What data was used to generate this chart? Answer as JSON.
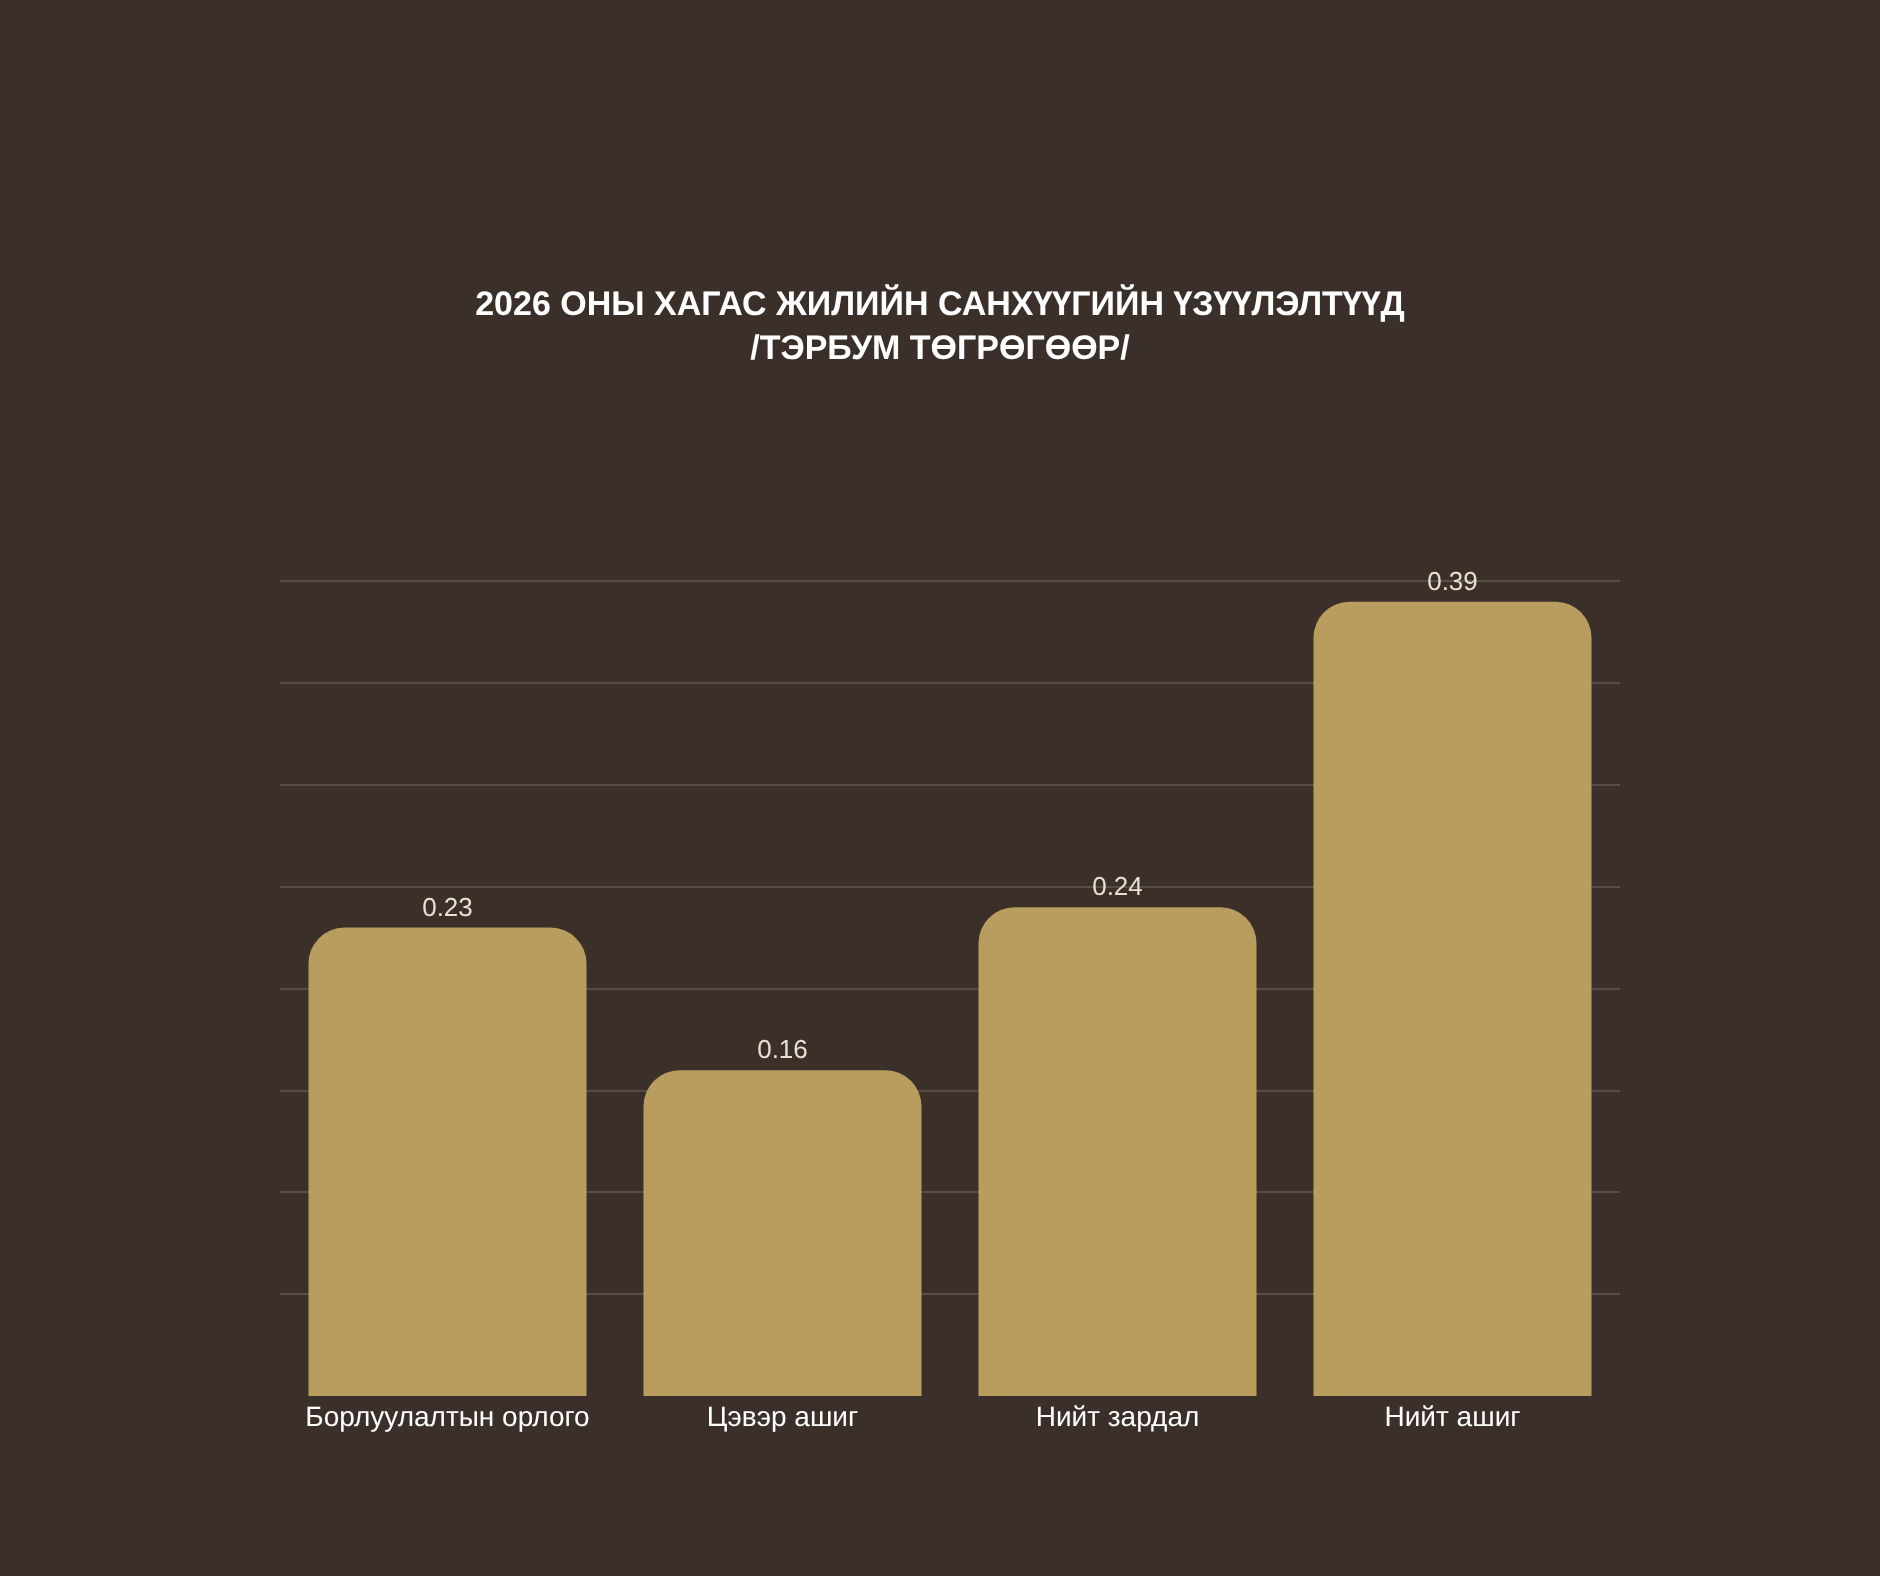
{
  "chart_data": {
    "type": "bar",
    "title": "2026 ОНЫ ХАГАС ЖИЛИЙН САНХҮҮГИЙН ҮЗҮҮЛЭЛТҮҮД\n/ТЭРБУМ ТӨГРӨГӨӨР/",
    "categories": [
      "Борлуулалтын орлого",
      "Цэвэр ашиг",
      "Нийт зардал",
      "Нийт ашиг"
    ],
    "values": [
      0.23,
      0.16,
      0.24,
      0.39
    ],
    "color": "#b89d5f",
    "data_labels": true,
    "tick_labels": "x",
    "grid": "y"
  }
}
